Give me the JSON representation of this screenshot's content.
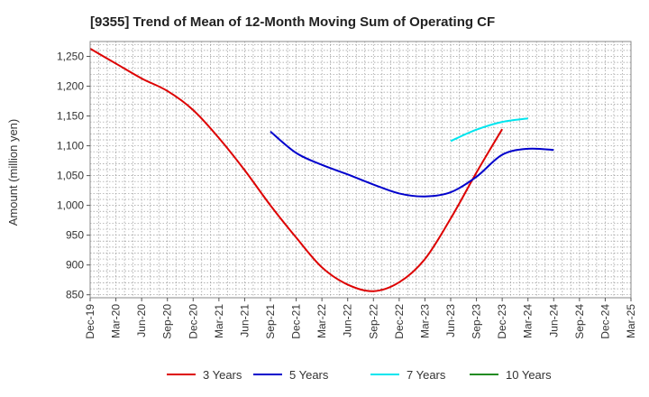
{
  "chart_data": {
    "type": "line",
    "title": "[9355]  Trend of Mean of 12-Month Moving Sum of Operating CF",
    "xlabel": "",
    "ylabel": "Amount (million yen)",
    "ylim": [
      845,
      1275
    ],
    "yticks": [
      850,
      900,
      950,
      1000,
      1050,
      1100,
      1150,
      1200,
      1250
    ],
    "ytick_labels": [
      "850",
      "900",
      "950",
      "1,000",
      "1,050",
      "1,100",
      "1,150",
      "1,200",
      "1,250"
    ],
    "x_tick_labels": [
      "Dec-19",
      "Mar-20",
      "Jun-20",
      "Sep-20",
      "Dec-20",
      "Mar-21",
      "Jun-21",
      "Sep-21",
      "Dec-21",
      "Mar-22",
      "Jun-22",
      "Sep-22",
      "Dec-22",
      "Mar-23",
      "Jun-23",
      "Sep-23",
      "Dec-23",
      "Mar-24",
      "Jun-24",
      "Sep-24",
      "Dec-24",
      "Mar-25"
    ],
    "grid": true,
    "legend_position": "bottom",
    "series": [
      {
        "name": "3 Years",
        "color": "#dd0000",
        "start_index": 0,
        "values": [
          1263,
          1238,
          1213,
          1192,
          1160,
          1113,
          1059,
          1000,
          946,
          896,
          867,
          856,
          871,
          910,
          978,
          1055,
          1128
        ]
      },
      {
        "name": "5 Years",
        "color": "#0000cc",
        "start_index": 7,
        "values": [
          1124,
          1088,
          1068,
          1052,
          1035,
          1020,
          1015,
          1022,
          1048,
          1085,
          1095,
          1093
        ]
      },
      {
        "name": "7 Years",
        "color": "#00e5ee",
        "start_index": 14,
        "values": [
          1108,
          1127,
          1140,
          1146
        ]
      },
      {
        "name": "10 Years",
        "color": "#228b22",
        "start_index": 0,
        "values": []
      }
    ]
  }
}
